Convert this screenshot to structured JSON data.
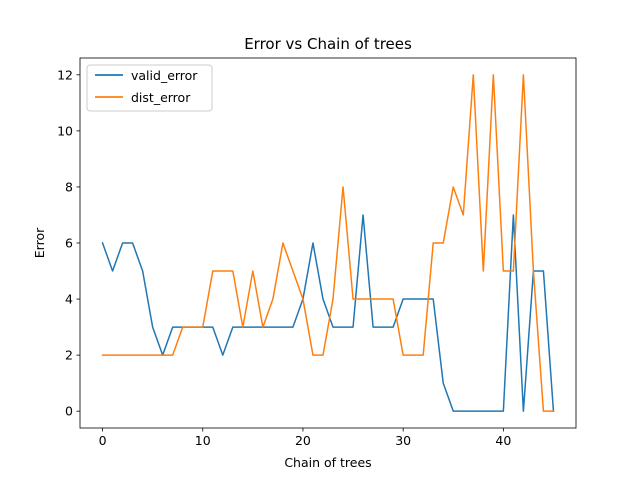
{
  "chart_data": {
    "type": "line",
    "title": "Error vs Chain of trees",
    "xlabel": "Chain of trees",
    "ylabel": "Error",
    "xlim": [
      -2.25,
      47.25
    ],
    "ylim": [
      -0.6,
      12.6
    ],
    "xticks": [
      0,
      10,
      20,
      30,
      40
    ],
    "yticks": [
      0,
      2,
      4,
      6,
      8,
      10,
      12
    ],
    "grid": false,
    "legend_position": "top-left",
    "x": [
      0,
      1,
      2,
      3,
      4,
      5,
      6,
      7,
      8,
      9,
      10,
      11,
      12,
      13,
      14,
      15,
      16,
      17,
      18,
      19,
      20,
      21,
      22,
      23,
      24,
      25,
      26,
      27,
      28,
      29,
      30,
      31,
      32,
      33,
      34,
      35,
      36,
      37,
      38,
      39,
      40,
      41,
      42,
      43,
      44,
      45
    ],
    "series": [
      {
        "name": "valid_error",
        "color": "#1f77b4",
        "values": [
          6,
          5,
          6,
          6,
          5,
          3,
          2,
          3,
          3,
          3,
          3,
          3,
          2,
          3,
          3,
          3,
          3,
          3,
          3,
          3,
          4,
          6,
          4,
          3,
          3,
          3,
          7,
          3,
          3,
          3,
          4,
          4,
          4,
          4,
          1,
          0,
          0,
          0,
          0,
          0,
          0,
          7,
          0,
          5,
          5,
          0
        ]
      },
      {
        "name": "dist_error",
        "color": "#ff7f0e",
        "values": [
          2,
          2,
          2,
          2,
          2,
          2,
          2,
          2,
          3,
          3,
          3,
          5,
          5,
          5,
          3,
          5,
          3,
          4,
          6,
          5,
          4,
          2,
          2,
          4,
          8,
          4,
          4,
          4,
          4,
          4,
          2,
          2,
          2,
          6,
          6,
          8,
          7,
          12,
          5,
          12,
          5,
          5,
          12,
          5,
          0,
          0
        ]
      }
    ]
  }
}
